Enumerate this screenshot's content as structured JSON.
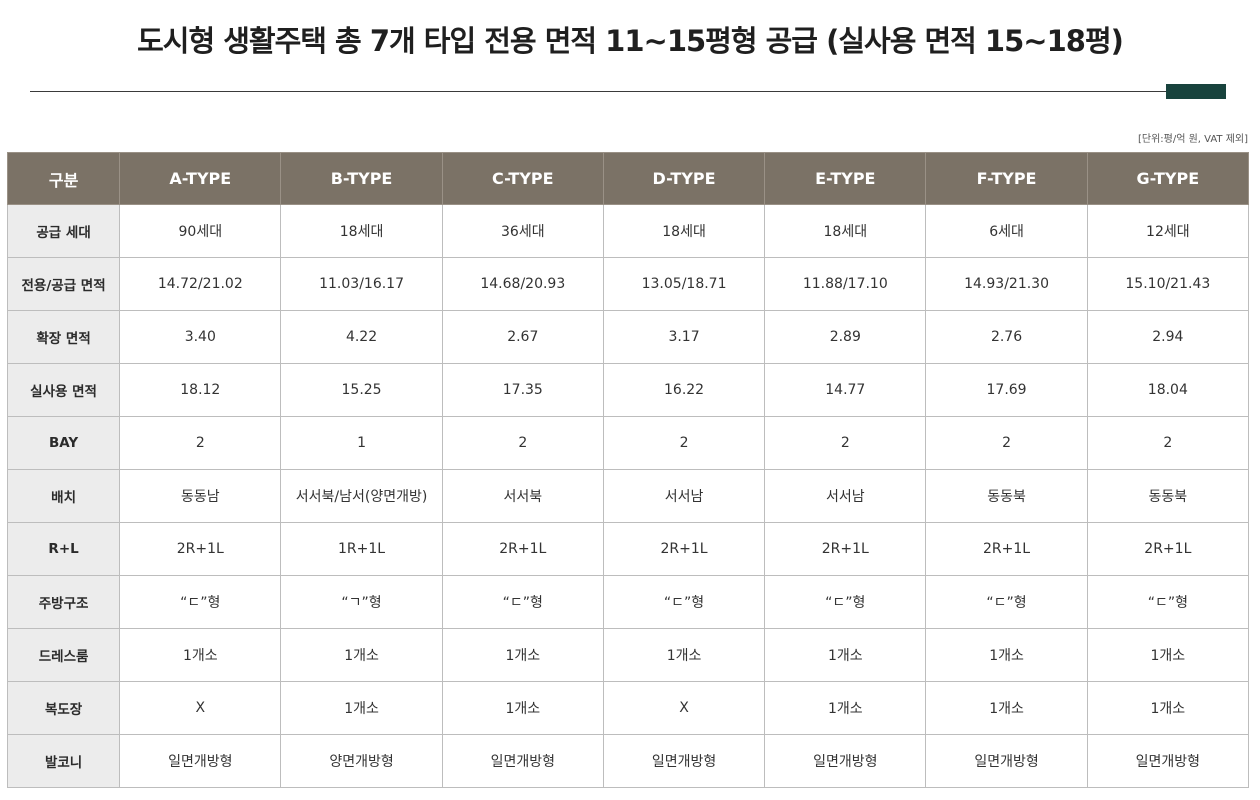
{
  "header": {
    "title": "도시형 생활주택 총 7개 타입 전용 면적 11~15평형 공급 (실사용 면적 15~18평)",
    "unit_note": "[단위:평/억 원, VAT 제외]",
    "accent_color": "#18433d"
  },
  "table": {
    "columns": [
      "구분",
      "A-TYPE",
      "B-TYPE",
      "C-TYPE",
      "D-TYPE",
      "E-TYPE",
      "F-TYPE",
      "G-TYPE"
    ],
    "rows": [
      {
        "label": "공급 세대",
        "cells": [
          "90세대",
          "18세대",
          "36세대",
          "18세대",
          "18세대",
          "6세대",
          "12세대"
        ]
      },
      {
        "label": "전용/공급 면적",
        "cells": [
          "14.72/21.02",
          "11.03/16.17",
          "14.68/20.93",
          "13.05/18.71",
          "11.88/17.10",
          "14.93/21.30",
          "15.10/21.43"
        ]
      },
      {
        "label": "확장 면적",
        "cells": [
          "3.40",
          "4.22",
          "2.67",
          "3.17",
          "2.89",
          "2.76",
          "2.94"
        ]
      },
      {
        "label": "실사용 면적",
        "cells": [
          "18.12",
          "15.25",
          "17.35",
          "16.22",
          "14.77",
          "17.69",
          "18.04"
        ]
      },
      {
        "label": "BAY",
        "cells": [
          "2",
          "1",
          "2",
          "2",
          "2",
          "2",
          "2"
        ]
      },
      {
        "label": "배치",
        "cells": [
          "동동남",
          "서서북/남서(양면개방)",
          "서서북",
          "서서남",
          "서서남",
          "동동북",
          "동동북"
        ]
      },
      {
        "label": "R+L",
        "cells": [
          "2R+1L",
          "1R+1L",
          "2R+1L",
          "2R+1L",
          "2R+1L",
          "2R+1L",
          "2R+1L"
        ]
      },
      {
        "label": "주방구조",
        "cells": [
          "“ㄷ”형",
          "“ㄱ”형",
          "“ㄷ”형",
          "“ㄷ”형",
          "“ㄷ”형",
          "“ㄷ”형",
          "“ㄷ”형"
        ]
      },
      {
        "label": "드레스룸",
        "cells": [
          "1개소",
          "1개소",
          "1개소",
          "1개소",
          "1개소",
          "1개소",
          "1개소"
        ]
      },
      {
        "label": "복도장",
        "cells": [
          "X",
          "1개소",
          "1개소",
          "X",
          "1개소",
          "1개소",
          "1개소"
        ]
      },
      {
        "label": "발코니",
        "cells": [
          "일면개방형",
          "양면개방형",
          "일면개방형",
          "일면개방형",
          "일면개방형",
          "일면개방형",
          "일면개방형"
        ]
      }
    ],
    "header_color": "#7b7266",
    "label_bg_color": "#ececec"
  }
}
